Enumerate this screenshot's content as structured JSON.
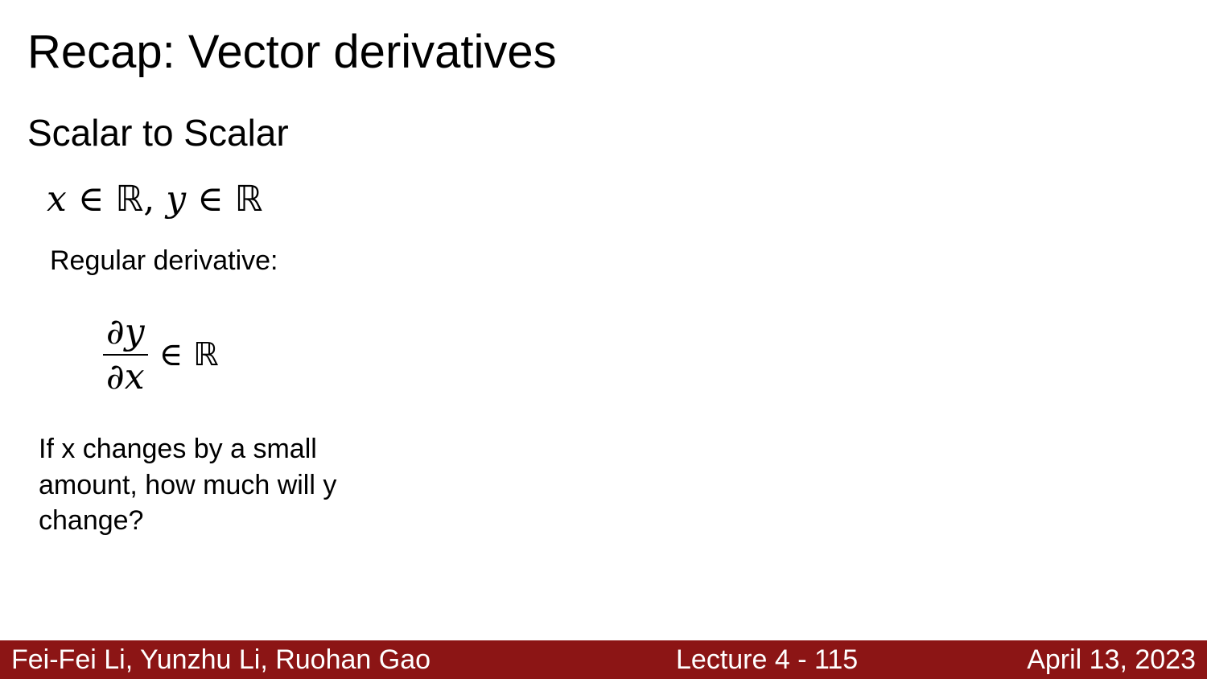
{
  "slide": {
    "title": "Recap: Vector derivatives",
    "subtitle": "Scalar to Scalar",
    "math": {
      "domain_x": "x",
      "domain_in_1": " ∈ ",
      "domain_set_1": "ℝ",
      "domain_sep": ", ",
      "domain_y": "y",
      "domain_in_2": " ∈ ",
      "domain_set_2": "ℝ"
    },
    "derivative_label": "Regular derivative:",
    "derivative": {
      "numerator": "∂y",
      "denominator": "∂x",
      "relation": "∈ ",
      "set": "ℝ"
    },
    "question": "If x changes by a small amount, how much will y change?"
  },
  "footer": {
    "authors": "Fei-Fei Li, Yunzhu Li, Ruohan Gao",
    "lecture": "Lecture 4 - 115",
    "date": "April 13, 2023",
    "background_color": "#8c1515"
  }
}
